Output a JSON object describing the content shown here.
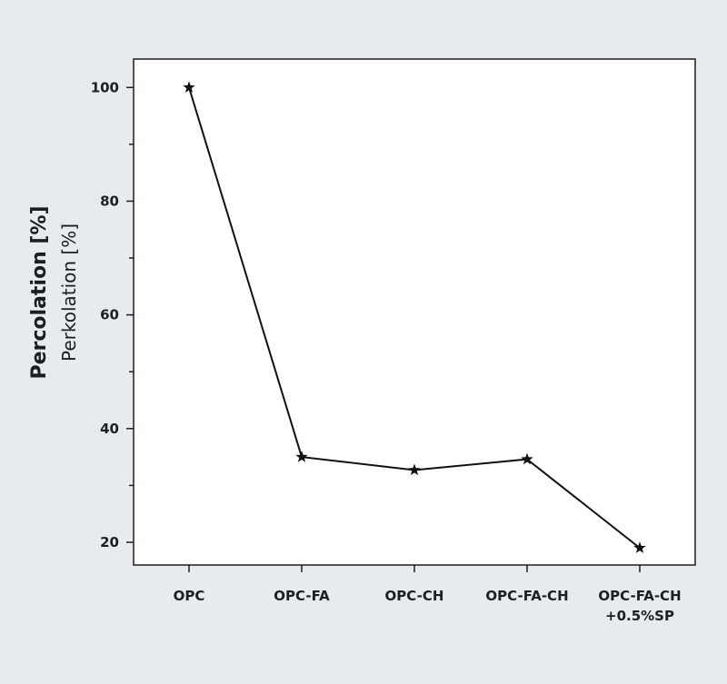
{
  "chart_data": {
    "type": "line",
    "categories": [
      "OPC",
      "OPC-FA",
      "OPC-CH",
      "OPC-FA-CH",
      "OPC-FA-CH\n+0.5%SP"
    ],
    "values": [
      100,
      35,
      32.7,
      34.6,
      19
    ],
    "ylabel": "Percolation [%]",
    "ylabel_secondary": "Perkolation [%]",
    "ylim": [
      16,
      105
    ],
    "yticks": [
      20,
      40,
      60,
      80,
      100
    ],
    "marker": "star",
    "grid": false,
    "colors": {
      "line": "#111111",
      "frame": "#1e1e1e",
      "plot_bg": "#ffffff",
      "page_bg": "#e6ebef"
    }
  }
}
